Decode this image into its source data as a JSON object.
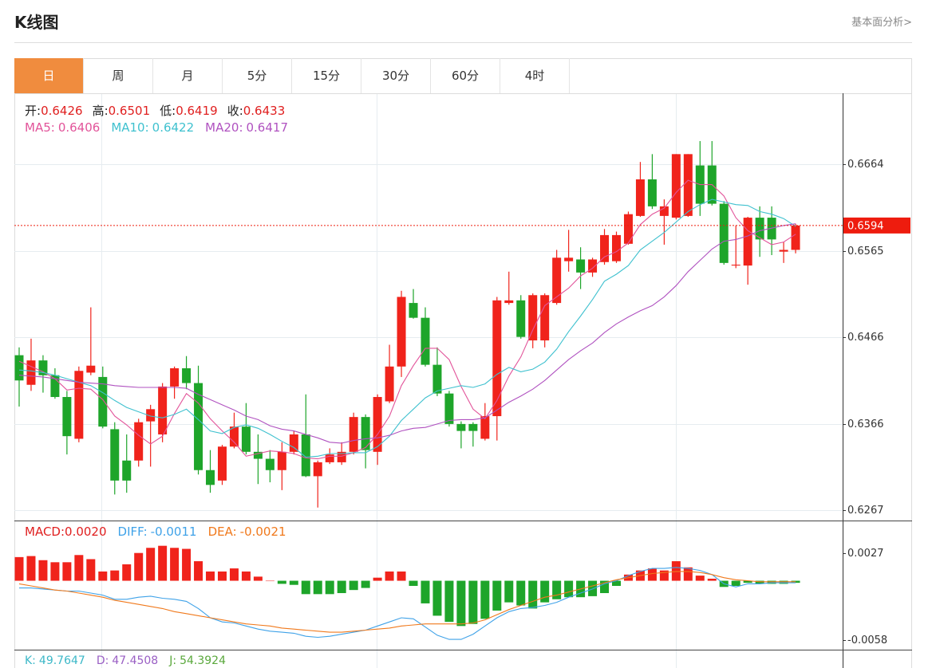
{
  "header": {
    "title": "K线图",
    "link": "基本面分析>"
  },
  "tabs": [
    "日",
    "周",
    "月",
    "5分",
    "15分",
    "30分",
    "60分",
    "4时"
  ],
  "active_tab": 0,
  "info_color": "#e02020",
  "info": [
    {
      "label": "开:",
      "value": 0.6426
    },
    {
      "label": "高:",
      "value": 0.6501
    },
    {
      "label": "低:",
      "value": 0.6419
    },
    {
      "label": "收:",
      "value": 0.6433
    }
  ],
  "chart_data": [
    {
      "type": "candlestick",
      "open": [
        0.6445,
        0.6411,
        0.6439,
        0.6422,
        0.6397,
        0.6349,
        0.6425,
        0.642,
        0.636,
        0.6324,
        0.6324,
        0.6369,
        0.6354,
        0.6409,
        0.643,
        0.6413,
        0.6313,
        0.6301,
        0.634,
        0.6363,
        0.6334,
        0.6326,
        0.6313,
        0.6334,
        0.6354,
        0.6306,
        0.6322,
        0.6322,
        0.6334,
        0.6374,
        0.6334,
        0.6392,
        0.6432,
        0.6505,
        0.6488,
        0.6434,
        0.6401,
        0.6366,
        0.6366,
        0.6349,
        0.6375,
        0.6505,
        0.6508,
        0.6462,
        0.6462,
        0.6505,
        0.6553,
        0.6555,
        0.654,
        0.6552,
        0.6553,
        0.6573,
        0.6605,
        0.6647,
        0.6605,
        0.6603,
        0.6605,
        0.6663,
        0.6663,
        0.6619,
        0.6548,
        0.6548,
        0.6603,
        0.6603,
        0.6564,
        0.6566
      ],
      "high": [
        0.6454,
        0.6464,
        0.6445,
        0.643,
        0.6404,
        0.6432,
        0.65,
        0.6432,
        0.6368,
        0.6354,
        0.6372,
        0.6388,
        0.6413,
        0.6432,
        0.6444,
        0.6433,
        0.6336,
        0.6342,
        0.6379,
        0.639,
        0.6354,
        0.6336,
        0.6345,
        0.6358,
        0.64,
        0.6324,
        0.6338,
        0.6345,
        0.6379,
        0.6377,
        0.64,
        0.6457,
        0.6519,
        0.6521,
        0.65,
        0.6454,
        0.6404,
        0.6369,
        0.6368,
        0.639,
        0.6512,
        0.6541,
        0.6514,
        0.6516,
        0.6516,
        0.6566,
        0.6589,
        0.6569,
        0.6557,
        0.659,
        0.6587,
        0.661,
        0.6667,
        0.6676,
        0.6624,
        0.6676,
        0.6676,
        0.6691,
        0.6691,
        0.6622,
        0.6594,
        0.6604,
        0.6616,
        0.6616,
        0.6575,
        0.6596
      ],
      "low": [
        0.6386,
        0.6404,
        0.6402,
        0.6395,
        0.6331,
        0.6345,
        0.6422,
        0.6361,
        0.6285,
        0.6287,
        0.6317,
        0.6317,
        0.6345,
        0.6395,
        0.6406,
        0.6308,
        0.6287,
        0.6296,
        0.6338,
        0.6331,
        0.6297,
        0.6299,
        0.629,
        0.6331,
        0.6305,
        0.627,
        0.632,
        0.6319,
        0.6331,
        0.6315,
        0.6319,
        0.639,
        0.642,
        0.6487,
        0.6432,
        0.6398,
        0.6363,
        0.6338,
        0.634,
        0.6347,
        0.6347,
        0.6503,
        0.6464,
        0.6453,
        0.6454,
        0.6503,
        0.6541,
        0.6521,
        0.6535,
        0.6549,
        0.6551,
        0.6572,
        0.6604,
        0.6613,
        0.6572,
        0.6601,
        0.6604,
        0.6605,
        0.6617,
        0.6549,
        0.6545,
        0.6526,
        0.6558,
        0.656,
        0.6551,
        0.6562
      ],
      "close": [
        0.6416,
        0.6439,
        0.6422,
        0.6397,
        0.6352,
        0.6427,
        0.6433,
        0.6363,
        0.6301,
        0.6301,
        0.6368,
        0.6383,
        0.6409,
        0.643,
        0.6413,
        0.6313,
        0.6296,
        0.634,
        0.6363,
        0.6334,
        0.6326,
        0.6313,
        0.6334,
        0.6354,
        0.6306,
        0.6322,
        0.6331,
        0.6334,
        0.6374,
        0.6336,
        0.6397,
        0.6432,
        0.6512,
        0.6488,
        0.6434,
        0.6401,
        0.6366,
        0.6358,
        0.6358,
        0.6375,
        0.6508,
        0.6508,
        0.6466,
        0.6514,
        0.6514,
        0.6557,
        0.6557,
        0.654,
        0.6555,
        0.6583,
        0.6583,
        0.6607,
        0.6647,
        0.6616,
        0.6616,
        0.6676,
        0.6676,
        0.6619,
        0.6619,
        0.6551,
        0.6549,
        0.6603,
        0.6578,
        0.6578,
        0.6566,
        0.6594
      ],
      "up_color": "#f0231b",
      "down_color": "#1ea52a",
      "series": [
        {
          "label": "MA5:",
          "legend_value": 0.6406,
          "color": "#e2549a",
          "values": [
            0.6438,
            0.6432,
            0.6426,
            0.6418,
            0.6405,
            0.6407,
            0.6406,
            0.6394,
            0.6375,
            0.6365,
            0.6353,
            0.6343,
            0.6352,
            0.6378,
            0.6401,
            0.639,
            0.6372,
            0.6358,
            0.6345,
            0.6329,
            0.6332,
            0.6335,
            0.6334,
            0.6332,
            0.6327,
            0.6326,
            0.6329,
            0.6329,
            0.6333,
            0.6339,
            0.6354,
            0.6375,
            0.641,
            0.6433,
            0.6453,
            0.6453,
            0.644,
            0.6409,
            0.6383,
            0.6372,
            0.6393,
            0.6421,
            0.6443,
            0.6474,
            0.6502,
            0.6512,
            0.6522,
            0.6536,
            0.6545,
            0.6558,
            0.6564,
            0.6574,
            0.6595,
            0.6607,
            0.6614,
            0.6632,
            0.6646,
            0.6641,
            0.6641,
            0.6628,
            0.6603,
            0.6588,
            0.658,
            0.6572,
            0.6575,
            0.6584
          ]
        },
        {
          "label": "MA10:",
          "legend_value": 0.6422,
          "color": "#3fc1cf",
          "values": [
            0.6428,
            0.6427,
            0.6425,
            0.6422,
            0.6418,
            0.6414,
            0.641,
            0.6402,
            0.6393,
            0.6385,
            0.638,
            0.6375,
            0.6373,
            0.6377,
            0.6383,
            0.6371,
            0.6358,
            0.6355,
            0.6362,
            0.6365,
            0.6361,
            0.6354,
            0.6346,
            0.6339,
            0.6328,
            0.6329,
            0.6332,
            0.6332,
            0.6333,
            0.6333,
            0.634,
            0.6352,
            0.637,
            0.6383,
            0.6396,
            0.6404,
            0.6407,
            0.641,
            0.6408,
            0.6412,
            0.6423,
            0.6431,
            0.6426,
            0.6429,
            0.6437,
            0.6452,
            0.6472,
            0.649,
            0.6509,
            0.653,
            0.6538,
            0.6548,
            0.6566,
            0.6576,
            0.6586,
            0.6598,
            0.661,
            0.6618,
            0.6624,
            0.6621,
            0.6618,
            0.6617,
            0.661,
            0.6607,
            0.6602,
            0.6593
          ]
        },
        {
          "label": "MA20:",
          "legend_value": 0.6417,
          "color": "#b052c0",
          "values": [
            0.6422,
            0.6421,
            0.642,
            0.6418,
            0.6416,
            0.6414,
            0.6413,
            0.6412,
            0.641,
            0.6409,
            0.6408,
            0.6408,
            0.6408,
            0.6408,
            0.6407,
            0.64,
            0.6394,
            0.6388,
            0.6382,
            0.6375,
            0.6371,
            0.6364,
            0.636,
            0.6358,
            0.6354,
            0.635,
            0.6345,
            0.6344,
            0.6347,
            0.6349,
            0.635,
            0.6353,
            0.6358,
            0.6361,
            0.6362,
            0.6366,
            0.637,
            0.6371,
            0.6371,
            0.6373,
            0.6382,
            0.6391,
            0.6398,
            0.6406,
            0.6416,
            0.6428,
            0.644,
            0.645,
            0.6459,
            0.6471,
            0.6481,
            0.6489,
            0.6496,
            0.6502,
            0.6512,
            0.6525,
            0.6541,
            0.6554,
            0.6567,
            0.6576,
            0.6578,
            0.6582,
            0.6588,
            0.6591,
            0.6594,
            0.6596
          ]
        }
      ],
      "ylim": [
        0.6256,
        0.6745
      ],
      "yticks": [
        0.6664,
        0.6565,
        0.6466,
        0.6366,
        0.6267
      ],
      "last_price": 0.6594,
      "last_price_color": "#ee1c0e",
      "grid": true
    },
    {
      "type": "macd",
      "macd": {
        "label": "MACD:",
        "legend_value": 0.002,
        "legend_value_label": "0.0020",
        "color": "#e02020",
        "values": [
          0.0023,
          0.0024,
          0.002,
          0.0018,
          0.0018,
          0.0025,
          0.0021,
          0.0009,
          0.001,
          0.0016,
          0.0027,
          0.0032,
          0.0034,
          0.0032,
          0.0031,
          0.0019,
          0.0009,
          0.0009,
          0.0012,
          0.0009,
          0.0004,
          0.0,
          -0.0003,
          -0.0004,
          -0.0013,
          -0.0013,
          -0.0013,
          -0.0012,
          -0.0009,
          -0.0007,
          0.0003,
          0.0009,
          0.0009,
          -0.0005,
          -0.0022,
          -0.0034,
          -0.004,
          -0.0044,
          -0.0042,
          -0.0037,
          -0.0029,
          -0.0021,
          -0.0024,
          -0.0027,
          -0.0021,
          -0.0018,
          -0.0016,
          -0.0016,
          -0.0015,
          -0.0012,
          -0.0005,
          0.0006,
          0.001,
          0.0012,
          0.001,
          0.0019,
          0.0013,
          0.0005,
          0.0002,
          -0.0006,
          -0.0005,
          -0.0002,
          -0.0003,
          -0.0003,
          -0.0003,
          -0.0002
        ]
      },
      "up_color": "#f0231b",
      "down_color": "#1ea52a",
      "series": [
        {
          "label": "DIFF:",
          "legend_value": -0.0011,
          "color": "#3fa2e8",
          "values": [
            -0.0007,
            -0.0007,
            -0.0008,
            -0.0009,
            -0.001,
            -0.001,
            -0.0012,
            -0.0014,
            -0.0018,
            -0.0018,
            -0.0016,
            -0.0015,
            -0.0017,
            -0.0018,
            -0.002,
            -0.0027,
            -0.0036,
            -0.004,
            -0.0041,
            -0.0044,
            -0.0047,
            -0.0049,
            -0.005,
            -0.0051,
            -0.0054,
            -0.0055,
            -0.0054,
            -0.0052,
            -0.005,
            -0.0048,
            -0.0044,
            -0.004,
            -0.0036,
            -0.0037,
            -0.0045,
            -0.0053,
            -0.0057,
            -0.0057,
            -0.0052,
            -0.0044,
            -0.0036,
            -0.003,
            -0.0027,
            -0.0026,
            -0.0024,
            -0.0021,
            -0.0016,
            -0.0012,
            -0.0008,
            -0.0003,
            0.0,
            0.0005,
            0.0009,
            0.0012,
            0.0012,
            0.0013,
            0.0012,
            0.001,
            0.0006,
            -0.0003,
            -0.0006,
            -0.0003,
            -0.0003,
            -0.0002,
            -0.0002,
            -0.0002
          ]
        },
        {
          "label": "DEA:",
          "legend_value": -0.0021,
          "color": "#f0791c",
          "values": [
            -0.0003,
            -0.0005,
            -0.0007,
            -0.0009,
            -0.001,
            -0.0012,
            -0.0014,
            -0.0016,
            -0.0019,
            -0.0021,
            -0.0023,
            -0.0025,
            -0.0027,
            -0.003,
            -0.0032,
            -0.0034,
            -0.0036,
            -0.0038,
            -0.004,
            -0.0042,
            -0.0043,
            -0.0044,
            -0.0046,
            -0.0047,
            -0.0048,
            -0.0049,
            -0.005,
            -0.005,
            -0.0049,
            -0.0048,
            -0.0047,
            -0.0046,
            -0.0044,
            -0.0043,
            -0.0042,
            -0.0042,
            -0.0042,
            -0.0042,
            -0.0041,
            -0.0038,
            -0.0033,
            -0.0028,
            -0.0024,
            -0.002,
            -0.0016,
            -0.0014,
            -0.0011,
            -0.0008,
            -0.0005,
            -0.0002,
            0.0001,
            0.0003,
            0.0005,
            0.0007,
            0.0008,
            0.0009,
            0.0009,
            0.0008,
            0.0006,
            0.0003,
            0.0001,
            0.0,
            -0.0001,
            -0.0001,
            -0.0001,
            -0.0001
          ]
        }
      ],
      "ylim": [
        -0.0067,
        0.0057
      ],
      "yticks": [
        0.0027,
        -0.0058
      ],
      "grid": true
    }
  ],
  "kdj": [
    {
      "label": "K:",
      "value": 49.7647,
      "color": "#3cb8c8"
    },
    {
      "label": "D:",
      "value": 47.4508,
      "color": "#9a5fc4"
    },
    {
      "label": "J:",
      "value": 54.3924,
      "color": "#5aa83c"
    }
  ]
}
